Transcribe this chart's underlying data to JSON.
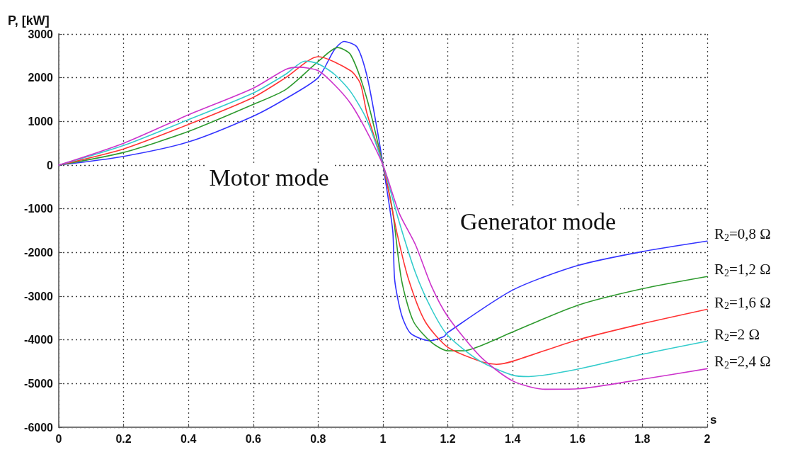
{
  "chart_data": {
    "type": "line",
    "xlabel": "s",
    "ylabel": "P, [kW]",
    "xlim": [
      0,
      2
    ],
    "xticks": [
      0,
      0.2,
      0.4,
      0.6,
      0.8,
      1,
      1.2,
      1.4,
      1.6,
      1.8,
      2
    ],
    "ylim": [
      -6000,
      3000
    ],
    "yticks": [
      -6000,
      -5000,
      -4000,
      -3000,
      -2000,
      -1000,
      0,
      1000,
      2000,
      3000
    ],
    "grid": true,
    "legend": false,
    "marker": "none",
    "line_style": "solid",
    "annotations": [
      "Motor mode",
      "Generator mode"
    ],
    "series": [
      {
        "name": "R$_{2}$=0,8 Ω",
        "color": "#3333ff",
        "x": [
          0,
          0.2,
          0.4,
          0.6,
          0.7,
          0.8,
          0.85,
          0.88,
          0.92,
          0.95,
          0.98,
          1,
          1.03,
          1.036,
          1.057,
          1.085,
          1.143,
          1.187,
          1.2,
          1.4,
          1.6,
          1.8,
          2
        ],
        "values": [
          0,
          200,
          530,
          1120,
          1520,
          2000,
          2640,
          2830,
          2700,
          2060,
          900,
          0,
          -1500,
          -2620,
          -3420,
          -3850,
          -4020,
          -3930,
          -3830,
          -2860,
          -2300,
          -1980,
          -1740
        ]
      },
      {
        "name": "R$_{2}$=1,2 Ω",
        "color": "#2e9a2e",
        "x": [
          0,
          0.2,
          0.4,
          0.6,
          0.7,
          0.8,
          0.86,
          0.9,
          0.95,
          1,
          1.029,
          1.057,
          1.094,
          1.15,
          1.2,
          1.25,
          1.3,
          1.4,
          1.6,
          1.8,
          2
        ],
        "values": [
          0,
          290,
          770,
          1390,
          1730,
          2370,
          2690,
          2530,
          1530,
          0,
          -1020,
          -2620,
          -3580,
          -4060,
          -4250,
          -4250,
          -4140,
          -3820,
          -3210,
          -2830,
          -2550
        ]
      },
      {
        "name": "R$_{2}$=1,6 Ω",
        "color": "#ff3333",
        "x": [
          0,
          0.2,
          0.4,
          0.6,
          0.7,
          0.8,
          0.9,
          0.93,
          0.95,
          1,
          1.043,
          1.079,
          1.13,
          1.2,
          1.3,
          1.35,
          1.4,
          1.6,
          1.8,
          2
        ],
        "values": [
          0,
          370,
          930,
          1550,
          2000,
          2480,
          2160,
          1870,
          1200,
          0,
          -1550,
          -2620,
          -3580,
          -4170,
          -4490,
          -4560,
          -4490,
          -4000,
          -3630,
          -3300
        ]
      },
      {
        "name": "R$_{2}$=2 Ω",
        "color": "#33cccc",
        "x": [
          0,
          0.2,
          0.4,
          0.6,
          0.7,
          0.76,
          0.8,
          0.85,
          0.9,
          0.95,
          1,
          1.05,
          1.1,
          1.15,
          1.2,
          1.3,
          1.4,
          1.45,
          1.6,
          1.8,
          2
        ],
        "values": [
          0,
          450,
          1040,
          1650,
          2080,
          2380,
          2320,
          2080,
          1680,
          1040,
          0,
          -1300,
          -2460,
          -3300,
          -3900,
          -4490,
          -4810,
          -4840,
          -4670,
          -4330,
          -4030
        ]
      },
      {
        "name": "R$_{2}$=2,4 Ω",
        "color": "#cc33cc",
        "x": [
          0,
          0.2,
          0.4,
          0.6,
          0.7,
          0.74,
          0.8,
          0.85,
          0.9,
          0.95,
          1,
          1.05,
          1.1,
          1.15,
          1.2,
          1.3,
          1.4,
          1.5,
          1.6,
          1.8,
          2
        ],
        "values": [
          0,
          500,
          1150,
          1760,
          2190,
          2240,
          2160,
          1840,
          1410,
          770,
          0,
          -1100,
          -1820,
          -2780,
          -3470,
          -4380,
          -4940,
          -5130,
          -5120,
          -4900,
          -4660
        ]
      }
    ]
  }
}
